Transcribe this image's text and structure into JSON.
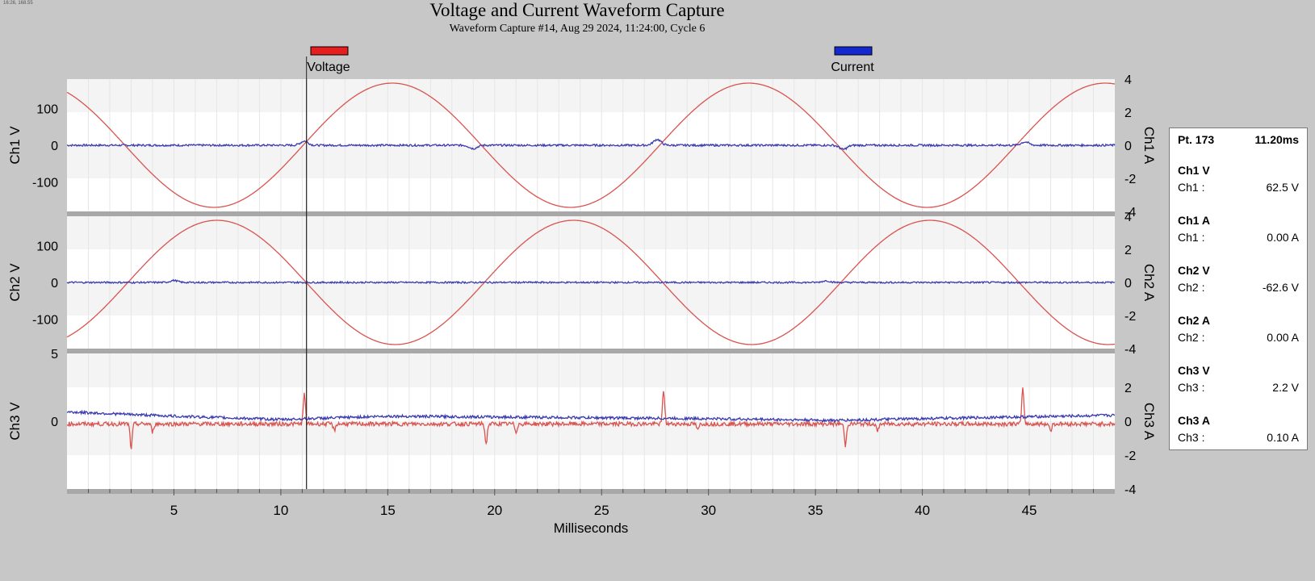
{
  "header": {
    "stamp": "16:26, 168.55",
    "title": "Voltage and Current Waveform Capture",
    "subtitle": "Waveform Capture #14, Aug 29 2024, 11:24:00,  Cycle 6"
  },
  "colors": {
    "voltage": "#d9534f",
    "current": "#3a3ab0",
    "legend_voltage": "#e61e1e",
    "legend_current": "#1428d2",
    "cursor": "#222222"
  },
  "chart_data": {
    "type": "line",
    "xlabel": "Milliseconds",
    "xlim": [
      0,
      49
    ],
    "xticks": [
      5,
      10,
      15,
      20,
      25,
      30,
      35,
      40,
      45
    ],
    "cursor_x": 11.2,
    "legend": [
      "Voltage",
      "Current"
    ],
    "panels": [
      {
        "left_label": "Ch1 V",
        "right_label": "Ch1 A",
        "left_ylim": [
          -180,
          180
        ],
        "left_ticks": [
          100,
          0,
          -100
        ],
        "right_ylim": [
          -4,
          4
        ],
        "right_ticks": [
          4,
          2,
          0,
          -2,
          -4
        ],
        "series": [
          {
            "name": "Voltage",
            "axis": "left",
            "wave": {
              "amplitude": 169,
              "period_ms": 16.67,
              "phase_deg": 121.5
            }
          },
          {
            "name": "Current",
            "axis": "right",
            "noise": 0.06,
            "bumps": [
              [
                11.1,
                0.25
              ],
              [
                27.6,
                0.35
              ],
              [
                36.3,
                -0.25
              ],
              [
                44.8,
                0.2
              ],
              [
                19.0,
                -0.2
              ]
            ]
          }
        ]
      },
      {
        "left_label": "Ch2 V",
        "right_label": "Ch2 A",
        "left_ylim": [
          -180,
          180
        ],
        "left_ticks": [
          100,
          0,
          -100
        ],
        "right_ylim": [
          -4,
          4
        ],
        "right_ticks": [
          4,
          2,
          0,
          -2,
          -4
        ],
        "series": [
          {
            "name": "Voltage",
            "axis": "left",
            "wave": {
              "amplitude": 169,
              "period_ms": 16.67,
              "phase_deg": -61.5
            }
          },
          {
            "name": "Current",
            "axis": "right",
            "noise": 0.05,
            "bumps": [
              [
                5.0,
                0.12
              ],
              [
                35.5,
                0.1
              ]
            ]
          }
        ]
      },
      {
        "left_label": "Ch3 V",
        "right_label": "Ch3 A",
        "left_ylim": [
          -5,
          5
        ],
        "left_ticks": [
          5,
          0
        ],
        "right_ylim": [
          -4,
          4
        ],
        "right_ticks": [
          2,
          0,
          -2,
          -4
        ],
        "series": [
          {
            "name": "Voltage",
            "axis": "left",
            "spikes": [
              [
                3.0,
                -1.8
              ],
              [
                11.1,
                2.2
              ],
              [
                19.6,
                -1.5
              ],
              [
                27.9,
                2.5
              ],
              [
                36.4,
                -1.6
              ],
              [
                44.7,
                2.6
              ],
              [
                4.0,
                -0.6
              ],
              [
                12.5,
                -0.5
              ],
              [
                21.0,
                -0.6
              ],
              [
                29.5,
                -0.5
              ],
              [
                37.9,
                -0.6
              ],
              [
                46.0,
                -0.5
              ]
            ],
            "noise": 0.15,
            "base": -0.2
          },
          {
            "name": "Current",
            "axis": "right",
            "noise": 0.08,
            "base": 0.35,
            "segments": [
              [
                0,
                0.55
              ],
              [
                5,
                0.3
              ],
              [
                10,
                0.1
              ],
              [
                15,
                0.3
              ],
              [
                20,
                0.25
              ],
              [
                30,
                0.15
              ],
              [
                36,
                0.05
              ],
              [
                42,
                0.2
              ],
              [
                49,
                0.35
              ]
            ]
          }
        ]
      }
    ]
  },
  "readout": {
    "point": "Pt. 173",
    "time": "11.20ms",
    "items": [
      {
        "label": "Ch1 V",
        "name": "Ch1 :",
        "value": "62.5 V"
      },
      {
        "label": "Ch1 A",
        "name": "Ch1 :",
        "value": "0.00 A"
      },
      {
        "label": "Ch2 V",
        "name": "Ch2 :",
        "value": "-62.6 V"
      },
      {
        "label": "Ch2 A",
        "name": "Ch2 :",
        "value": "0.00 A"
      },
      {
        "label": "Ch3 V",
        "name": "Ch3 :",
        "value": "2.2 V"
      },
      {
        "label": "Ch3 A",
        "name": "Ch3 :",
        "value": "0.10 A"
      }
    ]
  }
}
